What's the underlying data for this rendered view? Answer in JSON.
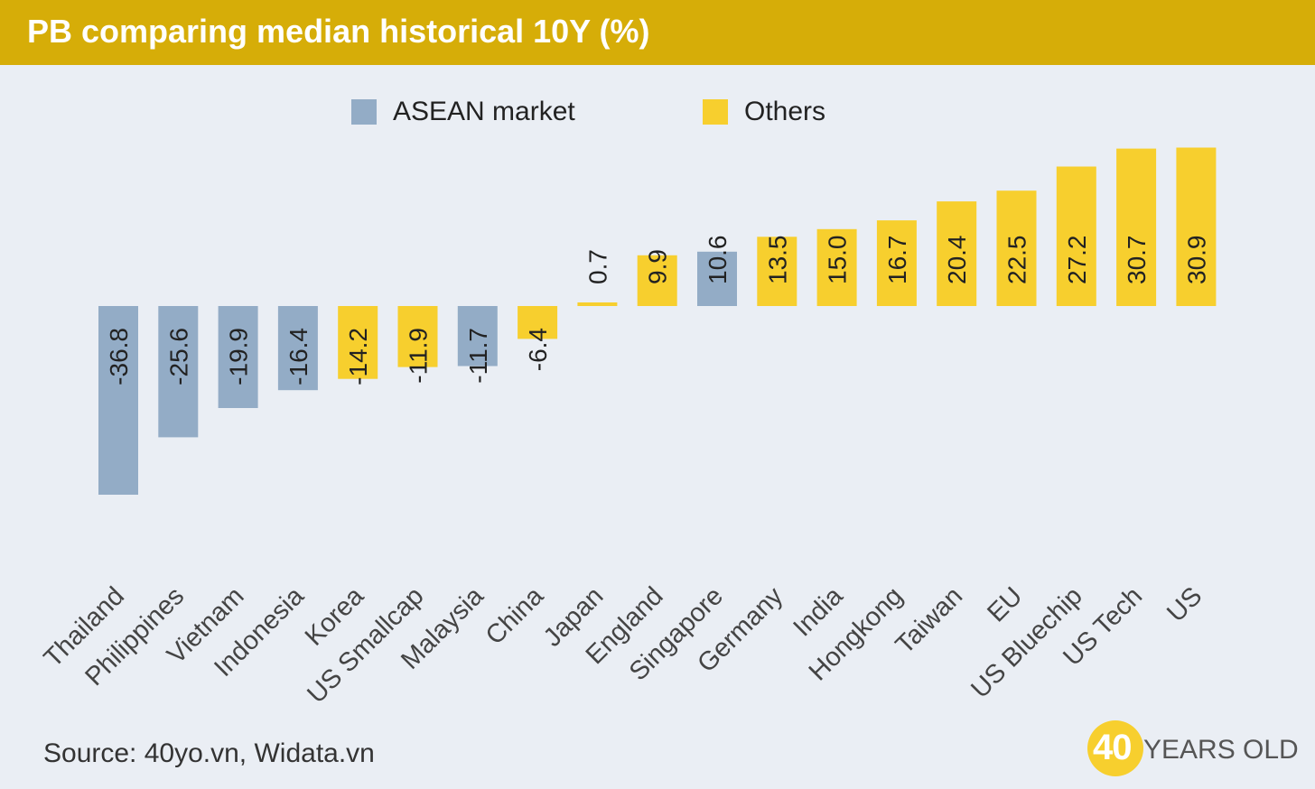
{
  "header": {
    "title": "PB comparing median historical 10Y (%)"
  },
  "legend": [
    {
      "label": "ASEAN market",
      "color": "#93acc6"
    },
    {
      "label": "Others",
      "color": "#f7cf2e"
    }
  ],
  "chart_data": {
    "type": "bar",
    "title": "PB comparing median historical 10Y (%)",
    "categories": [
      "Thailand",
      "Philippines",
      "Vietnam",
      "Indonesia",
      "Korea",
      "US Smallcap",
      "Malaysia",
      "China",
      "Japan",
      "England",
      "Singapore",
      "Germany",
      "India",
      "Hongkong",
      "Taiwan",
      "EU",
      "US Bluechip",
      "US Tech",
      "US"
    ],
    "values": [
      -36.8,
      -25.6,
      -19.9,
      -16.4,
      -14.2,
      -11.9,
      -11.7,
      -6.4,
      0.7,
      9.9,
      10.6,
      13.5,
      15.0,
      16.7,
      20.4,
      22.5,
      27.2,
      30.7,
      30.9
    ],
    "value_labels": [
      "-36.8",
      "-25.6",
      "-19.9",
      "-16.4",
      "-14.2",
      "-11.9",
      "-11.7",
      "-6.4",
      "0.7",
      "9.9",
      "10.6",
      "13.5",
      "15.0",
      "16.7",
      "20.4",
      "22.5",
      "27.2",
      "30.7",
      "30.9"
    ],
    "groups": [
      "ASEAN market",
      "ASEAN market",
      "ASEAN market",
      "ASEAN market",
      "Others",
      "Others",
      "ASEAN market",
      "Others",
      "Others",
      "Others",
      "ASEAN market",
      "Others",
      "Others",
      "Others",
      "Others",
      "Others",
      "Others",
      "Others",
      "Others"
    ],
    "series": [
      {
        "name": "ASEAN market",
        "color": "#93acc6"
      },
      {
        "name": "Others",
        "color": "#f7cf2e"
      }
    ],
    "ylim": [
      -37,
      31
    ],
    "grid": false,
    "legend_position": "top-center",
    "xlabel": "",
    "ylabel": ""
  },
  "footer": {
    "source": "Source: 40yo.vn, Widata.vn",
    "brand_number": "40",
    "brand_text": "YEARS OLD"
  }
}
